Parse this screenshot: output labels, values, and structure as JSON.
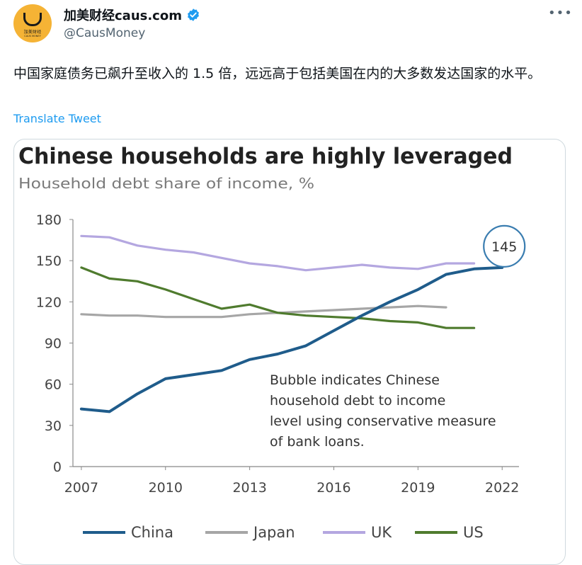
{
  "tweet": {
    "display_name": "加美财经caus.com",
    "handle": "@CausMoney",
    "avatar": {
      "brand": "加美财经",
      "brand_sub": "CAUS MONEY",
      "color": "#f5b335"
    },
    "more_icon": "more-horizontal-icon",
    "verified_icon": "verified-badge-icon",
    "text": "中国家庭债务已飙升至收入的 1.5 倍，远远高于包括美国在内的大多数发达国家的水平。",
    "translate_label": "Translate Tweet"
  },
  "chart_data": {
    "type": "line",
    "title": "Chinese households are highly leveraged",
    "subtitle": "Household debt share of income, %",
    "x": [
      2007,
      2008,
      2009,
      2010,
      2011,
      2012,
      2013,
      2014,
      2015,
      2016,
      2017,
      2018,
      2019,
      2020,
      2021,
      2022
    ],
    "xticks": [
      2007,
      2010,
      2013,
      2016,
      2019,
      2022
    ],
    "yticks": [
      0,
      30,
      60,
      90,
      120,
      150,
      180
    ],
    "xlim": [
      2006.7,
      2022.6
    ],
    "ylim": [
      0,
      180
    ],
    "grid": false,
    "legend_position": "bottom",
    "series": [
      {
        "name": "China",
        "color": "#1f5c8b",
        "values": [
          42,
          40,
          53,
          64,
          67,
          70,
          78,
          82,
          88,
          99,
          110,
          120,
          129,
          140,
          144,
          145
        ]
      },
      {
        "name": "Japan",
        "color": "#a6a6a6",
        "values": [
          111,
          110,
          110,
          109,
          109,
          109,
          111,
          112,
          113,
          114,
          115,
          116,
          117,
          116,
          null,
          null
        ]
      },
      {
        "name": "UK",
        "color": "#b4a7e0",
        "values": [
          168,
          167,
          161,
          158,
          156,
          152,
          148,
          146,
          143,
          145,
          147,
          145,
          144,
          148,
          148,
          null
        ]
      },
      {
        "name": "US",
        "color": "#4f7b2e",
        "values": [
          145,
          137,
          135,
          129,
          122,
          115,
          118,
          112,
          110,
          109,
          108,
          106,
          105,
          101,
          101,
          null
        ]
      }
    ],
    "bubble": {
      "label": "145",
      "x": 2022,
      "y": 145,
      "color": "#3a7db0"
    },
    "annotation": "Bubble indicates Chinese household debt to income level using conservative measure of bank loans."
  }
}
